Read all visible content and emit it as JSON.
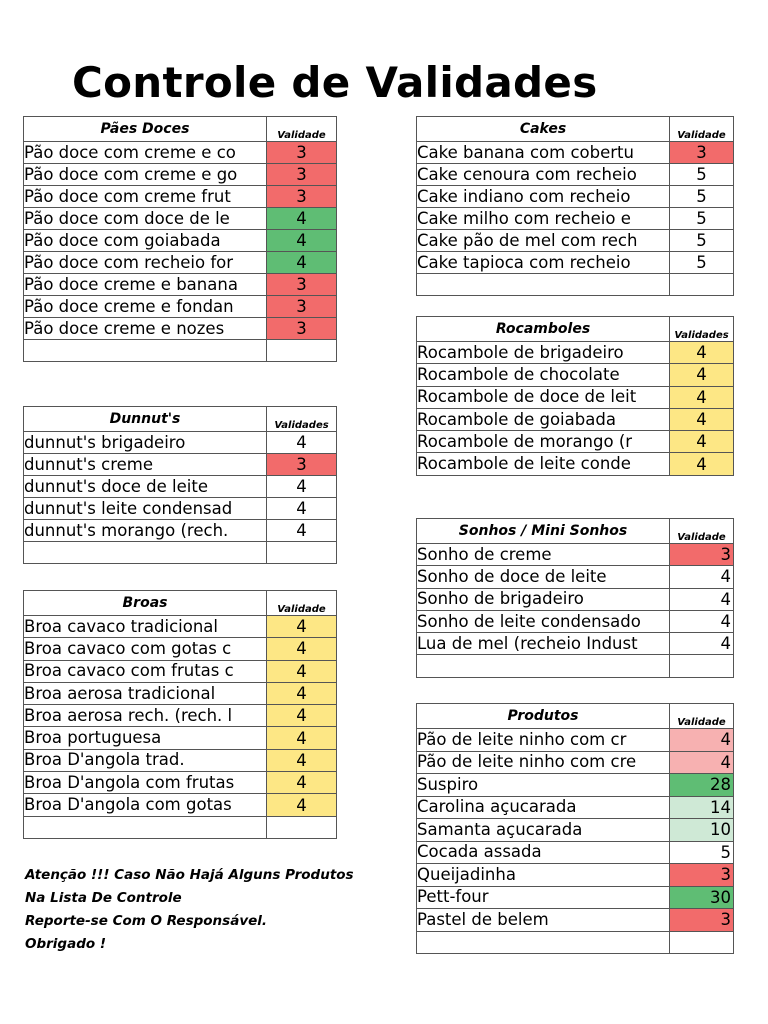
{
  "title": "Controle de Validades",
  "paes_doces": {
    "header": "Pães Doces",
    "val_header": "Validade",
    "rows": [
      {
        "name": "Pão doce com creme e co",
        "val": "3",
        "c": "red"
      },
      {
        "name": "Pão doce com creme e go",
        "val": "3",
        "c": "red"
      },
      {
        "name": "Pão doce com creme frut",
        "val": "3",
        "c": "red"
      },
      {
        "name": "Pão doce com doce de le",
        "val": "4",
        "c": "green"
      },
      {
        "name": "Pão doce com goiabada",
        "val": "4",
        "c": "green"
      },
      {
        "name": "Pão doce com recheio for",
        "val": "4",
        "c": "green"
      },
      {
        "name": "Pão doce creme e banana",
        "val": "3",
        "c": "red"
      },
      {
        "name": "Pão doce creme e fondan",
        "val": "3",
        "c": "red"
      },
      {
        "name": "Pão doce creme e nozes",
        "val": "3",
        "c": "red"
      },
      {
        "name": "",
        "val": "",
        "c": ""
      }
    ]
  },
  "dunnuts": {
    "header": "Dunnut's",
    "val_header": "Validades",
    "rows": [
      {
        "name": "dunnut's brigadeiro",
        "val": "4",
        "c": ""
      },
      {
        "name": "dunnut's creme",
        "val": "3",
        "c": "red"
      },
      {
        "name": "dunnut's doce de leite",
        "val": "4",
        "c": ""
      },
      {
        "name": "dunnut's leite condensad",
        "val": "4",
        "c": ""
      },
      {
        "name": "dunnut's morango (rech.",
        "val": "4",
        "c": ""
      },
      {
        "name": "",
        "val": "",
        "c": ""
      }
    ]
  },
  "broas": {
    "header": "Broas",
    "val_header": "Validade",
    "rows": [
      {
        "name": "Broa cavaco tradicional",
        "val": "4",
        "c": "yellow"
      },
      {
        "name": "Broa cavaco com gotas c",
        "val": "4",
        "c": "yellow"
      },
      {
        "name": "Broa cavaco com frutas c",
        "val": "4",
        "c": "yellow"
      },
      {
        "name": "Broa aerosa tradicional",
        "val": "4",
        "c": "yellow"
      },
      {
        "name": "Broa aerosa rech. (rech. l",
        "val": "4",
        "c": "yellow"
      },
      {
        "name": "Broa portuguesa",
        "val": "4",
        "c": "yellow"
      },
      {
        "name": "Broa D'angola trad.",
        "val": "4",
        "c": "yellow"
      },
      {
        "name": "Broa D'angola com frutas",
        "val": "4",
        "c": "yellow"
      },
      {
        "name": "Broa D'angola com gotas",
        "val": "4",
        "c": "yellow"
      },
      {
        "name": "",
        "val": "",
        "c": ""
      }
    ]
  },
  "cakes": {
    "header": "Cakes",
    "val_header": "Validade",
    "rows": [
      {
        "name": "Cake banana com cobertu",
        "val": "3",
        "c": "red"
      },
      {
        "name": "Cake cenoura com recheio",
        "val": "5",
        "c": ""
      },
      {
        "name": "Cake indiano com recheio",
        "val": "5",
        "c": ""
      },
      {
        "name": "Cake milho com recheio e",
        "val": "5",
        "c": ""
      },
      {
        "name": "Cake pão de mel com rech",
        "val": "5",
        "c": ""
      },
      {
        "name": "Cake tapioca com recheio",
        "val": "5",
        "c": ""
      },
      {
        "name": "",
        "val": "",
        "c": ""
      }
    ]
  },
  "rocamboles": {
    "header": "Rocamboles",
    "val_header": "Validades",
    "rows": [
      {
        "name": "Rocambole de brigadeiro",
        "val": "4",
        "c": "yellow"
      },
      {
        "name": "Rocambole de chocolate",
        "val": "4",
        "c": "yellow"
      },
      {
        "name": "Rocambole de doce de leit",
        "val": "4",
        "c": "yellow"
      },
      {
        "name": "Rocambole de goiabada",
        "val": "4",
        "c": "yellow"
      },
      {
        "name": "Rocambole de morango (r",
        "val": "4",
        "c": "yellow"
      },
      {
        "name": "Rocambole de leite conde",
        "val": "4",
        "c": "yellow"
      }
    ]
  },
  "sonhos": {
    "header": "Sonhos / Mini Sonhos",
    "val_header": "Validade",
    "rows": [
      {
        "name": "Sonho de creme",
        "val": "3",
        "c": "red"
      },
      {
        "name": "Sonho de doce de leite",
        "val": "4",
        "c": ""
      },
      {
        "name": "Sonho de brigadeiro",
        "val": "4",
        "c": ""
      },
      {
        "name": "Sonho de leite condensado",
        "val": "4",
        "c": ""
      },
      {
        "name": "Lua de mel (recheio Indust",
        "val": "4",
        "c": ""
      },
      {
        "name": "",
        "val": "",
        "c": ""
      }
    ]
  },
  "produtos": {
    "header": "Produtos",
    "val_header": "Validade",
    "rows": [
      {
        "name": "Pão de leite ninho com cr",
        "val": "4",
        "c": "pink"
      },
      {
        "name": "Pão de leite ninho com cre",
        "val": "4",
        "c": "pink"
      },
      {
        "name": "Suspiro",
        "val": "28",
        "c": "green"
      },
      {
        "name": "Carolina açucarada",
        "val": "14",
        "c": "lightgreen"
      },
      {
        "name": "Samanta açucarada",
        "val": "10",
        "c": "lightgreen"
      },
      {
        "name": "Cocada assada",
        "val": "5",
        "c": ""
      },
      {
        "name": "Queijadinha",
        "val": "3",
        "c": "red"
      },
      {
        "name": "Pett-four",
        "val": "30",
        "c": "green"
      },
      {
        "name": "Pastel de belem",
        "val": "3",
        "c": "red"
      },
      {
        "name": "",
        "val": "",
        "c": ""
      }
    ]
  },
  "note": {
    "line1": "Atenção !!! Caso Não Hajá Alguns Produtos",
    "line2": "Na Lista De Controle",
    "line3": "Reporte-se Com O Responsável.",
    "line4": "Obrigado !"
  },
  "colors": {
    "red": "#f26b6b",
    "green": "#5fbd74",
    "yellow": "#fde785",
    "pink": "#f7b1b1",
    "lightgreen": "#cfe9d6"
  }
}
